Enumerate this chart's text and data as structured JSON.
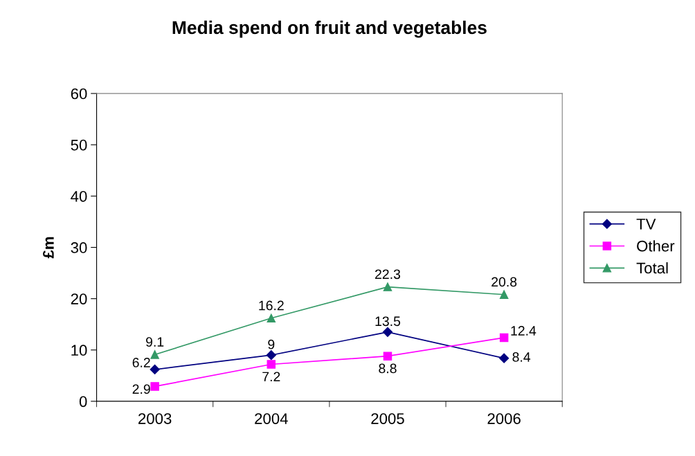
{
  "chart_data": {
    "type": "line",
    "title": "Media spend on fruit and vegetables",
    "ylabel": "£m",
    "categories": [
      "2003",
      "2004",
      "2005",
      "2006"
    ],
    "series": [
      {
        "name": "TV",
        "color": "#000080",
        "marker": "diamond",
        "values": [
          6.2,
          9,
          13.5,
          8.4
        ]
      },
      {
        "name": "Other",
        "color": "#ff00ff",
        "marker": "square",
        "values": [
          2.9,
          7.2,
          8.8,
          12.4
        ]
      },
      {
        "name": "Total",
        "color": "#339966",
        "marker": "triangle",
        "values": [
          9.1,
          16.2,
          22.3,
          20.8
        ]
      }
    ],
    "ylim": [
      0,
      60
    ],
    "yticks": [
      0,
      10,
      20,
      30,
      40,
      50,
      60
    ],
    "grid": false,
    "legend": "right",
    "data_labels": true,
    "line_style": "solid"
  }
}
